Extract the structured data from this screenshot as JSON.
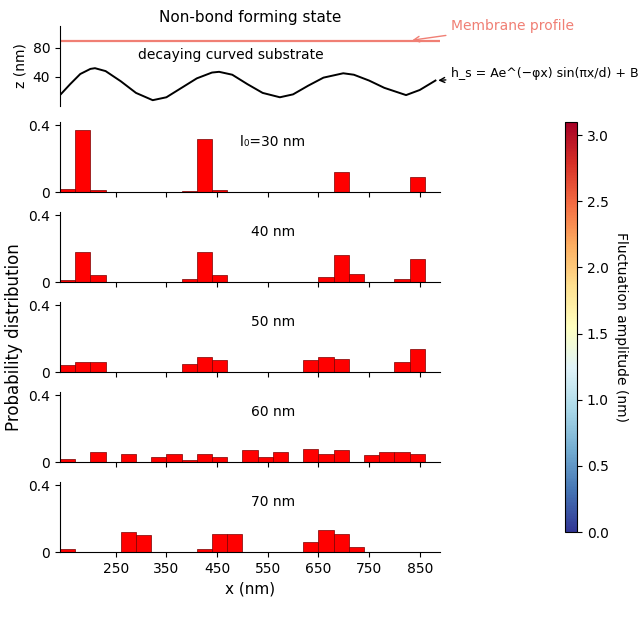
{
  "chart_data": [
    {
      "type": "line",
      "title": "Non-bond forming state",
      "y_label": "z (nm)",
      "xlim": [
        140,
        890
      ],
      "ylim": [
        0,
        110
      ],
      "yticks": [
        40,
        80
      ],
      "tick_labels": "y",
      "annotations": [
        "h_s = Ae^(−φx) sin(πx/d) + B"
      ],
      "series": [
        {
          "name": "Membrane profile",
          "color": "#f07f74",
          "x": [
            140,
            890
          ],
          "values": [
            90,
            90
          ]
        },
        {
          "name": "decaying curved substrate",
          "color": "#000000",
          "x": [
            140,
            160,
            180,
            200,
            209,
            230,
            260,
            290,
            323,
            350,
            380,
            410,
            440,
            454,
            480,
            510,
            540,
            574,
            600,
            630,
            660,
            699,
            720,
            750,
            780,
            823,
            850,
            881
          ],
          "values": [
            15,
            30,
            44,
            51,
            52,
            48,
            34,
            18,
            8,
            12,
            25,
            38,
            46,
            47,
            43,
            30,
            18,
            12,
            16,
            28,
            39,
            45,
            43,
            35,
            25,
            15,
            22,
            35
          ]
        }
      ]
    },
    {
      "type": "histogram",
      "label": "l₀=30 nm",
      "color": "#ff0000",
      "tick_labels": "y",
      "bins": [
        140,
        170,
        200,
        230,
        260,
        290,
        320,
        350,
        380,
        410,
        440,
        470,
        500,
        530,
        560,
        590,
        620,
        650,
        680,
        710,
        740,
        770,
        800,
        830,
        860,
        890
      ],
      "counts": [
        0.02,
        0.37,
        0.01,
        0,
        0,
        0,
        0,
        0,
        0.005,
        0.32,
        0.01,
        0,
        0,
        0,
        0,
        0,
        0,
        0,
        0.12,
        0,
        0,
        0,
        0,
        0.09,
        0
      ],
      "xlim": [
        140,
        890
      ],
      "xticks": [
        250,
        350,
        450,
        550,
        650,
        750,
        850
      ],
      "ylim": [
        0,
        0.42
      ],
      "yticks": [
        0,
        0.4
      ]
    },
    {
      "type": "histogram",
      "label": "40 nm",
      "color": "#ff0000",
      "tick_labels": "y",
      "bins": [
        140,
        170,
        200,
        230,
        260,
        290,
        320,
        350,
        380,
        410,
        440,
        470,
        500,
        530,
        560,
        590,
        620,
        650,
        680,
        710,
        740,
        770,
        800,
        830,
        860,
        890
      ],
      "counts": [
        0.01,
        0.18,
        0.04,
        0,
        0,
        0,
        0,
        0,
        0.02,
        0.18,
        0.04,
        0,
        0,
        0,
        0,
        0,
        0,
        0.03,
        0.16,
        0.05,
        0,
        0,
        0.02,
        0.14,
        0
      ],
      "xlim": [
        140,
        890
      ],
      "xticks": [
        250,
        350,
        450,
        550,
        650,
        750,
        850
      ],
      "ylim": [
        0,
        0.42
      ],
      "yticks": [
        0,
        0.4
      ]
    },
    {
      "type": "histogram",
      "label": "50 nm",
      "color": "#ff0000",
      "tick_labels": "y",
      "bins": [
        140,
        170,
        200,
        230,
        260,
        290,
        320,
        350,
        380,
        410,
        440,
        470,
        500,
        530,
        560,
        590,
        620,
        650,
        680,
        710,
        740,
        770,
        800,
        830,
        860,
        890
      ],
      "counts": [
        0.04,
        0.06,
        0.06,
        0,
        0,
        0,
        0,
        0,
        0.05,
        0.09,
        0.07,
        0,
        0,
        0,
        0,
        0,
        0.07,
        0.09,
        0.08,
        0,
        0,
        0,
        0.06,
        0.14,
        0
      ],
      "xlim": [
        140,
        890
      ],
      "xticks": [
        250,
        350,
        450,
        550,
        650,
        750,
        850
      ],
      "ylim": [
        0,
        0.42
      ],
      "yticks": [
        0,
        0.4
      ]
    },
    {
      "type": "histogram",
      "label": "60 nm",
      "color": "#ff0000",
      "tick_labels": "y",
      "bins": [
        140,
        170,
        200,
        230,
        260,
        290,
        320,
        350,
        380,
        410,
        440,
        470,
        500,
        530,
        560,
        590,
        620,
        650,
        680,
        710,
        740,
        770,
        800,
        830,
        860,
        890
      ],
      "counts": [
        0.02,
        0,
        0.06,
        0,
        0.05,
        0,
        0.03,
        0.05,
        0.01,
        0.05,
        0.03,
        0,
        0.07,
        0.03,
        0.06,
        0,
        0.08,
        0.05,
        0.07,
        0,
        0.04,
        0.06,
        0.06,
        0.05,
        0
      ],
      "xlim": [
        140,
        890
      ],
      "xticks": [
        250,
        350,
        450,
        550,
        650,
        750,
        850
      ],
      "ylim": [
        0,
        0.42
      ],
      "yticks": [
        0,
        0.4
      ]
    },
    {
      "type": "histogram",
      "label": "70 nm",
      "color": "#ff0000",
      "bins": [
        140,
        170,
        200,
        230,
        260,
        290,
        320,
        350,
        380,
        410,
        440,
        470,
        500,
        530,
        560,
        590,
        620,
        650,
        680,
        710,
        740,
        770,
        800,
        830,
        860,
        890
      ],
      "counts": [
        0.02,
        0,
        0,
        0,
        0.12,
        0.1,
        0,
        0,
        0,
        0.02,
        0.11,
        0.11,
        0,
        0,
        0,
        0,
        0.06,
        0.13,
        0.11,
        0.03,
        0,
        0,
        0,
        0,
        0
      ],
      "xlim": [
        140,
        890
      ],
      "xticks": [
        250,
        350,
        450,
        550,
        650,
        750,
        850
      ],
      "ylim": [
        0,
        0.42
      ],
      "yticks": [
        0,
        0.4
      ]
    }
  ],
  "shared": {
    "x_label": "x (nm)",
    "y_label": "Probability distribution"
  },
  "colorbar": {
    "label": "Fluctuation amplitude (nm)",
    "range": [
      0,
      3.1
    ],
    "ticks": [
      {
        "value": 0,
        "label": "0.0"
      },
      0.5,
      {
        "value": 1,
        "label": "1.0"
      },
      1.5,
      {
        "value": 2,
        "label": "2.0"
      },
      2.5,
      {
        "value": 3,
        "label": "3.0"
      }
    ]
  }
}
